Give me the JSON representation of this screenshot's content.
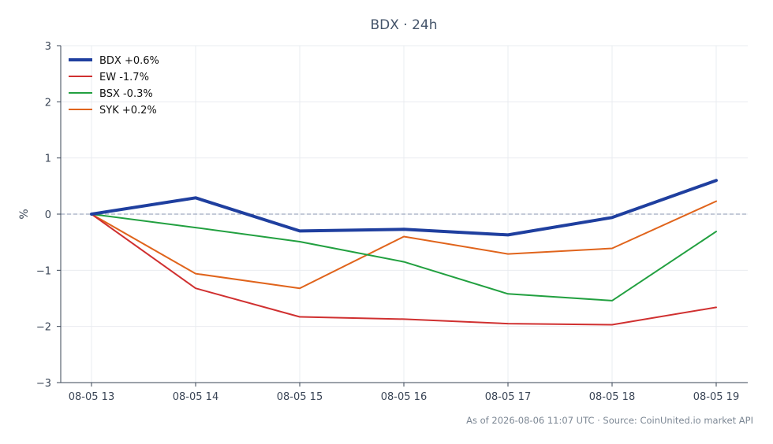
{
  "chart_data": {
    "type": "line",
    "title": "BDX · 24h",
    "xlabel": "",
    "ylabel": "%",
    "ylim": [
      -3,
      3
    ],
    "yticks": [
      {
        "value": 3,
        "label": "3"
      },
      {
        "value": 2,
        "label": "2"
      },
      {
        "value": 1,
        "label": "1"
      },
      {
        "value": 0,
        "label": "0"
      },
      {
        "value": -1,
        "label": "−1"
      },
      {
        "value": -2,
        "label": "−2"
      },
      {
        "value": -3,
        "label": "−3"
      }
    ],
    "categories": [
      "08-05 13",
      "08-05 14",
      "08-05 15",
      "08-05 16",
      "08-05 17",
      "08-05 18",
      "08-05 19"
    ],
    "zero_line": true,
    "grid": true,
    "legend_position": "top-left",
    "series": [
      {
        "name": "BDX +0.6%",
        "color": "#1f3f9f",
        "width": 4,
        "values": [
          0.0,
          0.29,
          -0.3,
          -0.27,
          -0.37,
          -0.06,
          0.6
        ]
      },
      {
        "name": "EW -1.7%",
        "color": "#d03030",
        "width": 2,
        "values": [
          0.0,
          -1.32,
          -1.83,
          -1.87,
          -1.95,
          -1.97,
          -1.66
        ]
      },
      {
        "name": "BSX -0.3%",
        "color": "#22a040",
        "width": 2,
        "values": [
          0.0,
          -0.24,
          -0.49,
          -0.85,
          -1.42,
          -1.54,
          -0.31
        ]
      },
      {
        "name": "SYK +0.2%",
        "color": "#e0641c",
        "width": 2,
        "values": [
          0.0,
          -1.06,
          -1.32,
          -0.4,
          -0.71,
          -0.61,
          0.23
        ]
      }
    ]
  },
  "footer": "As of 2026-08-06 11:07 UTC · Source: CoinUnited.io market API"
}
